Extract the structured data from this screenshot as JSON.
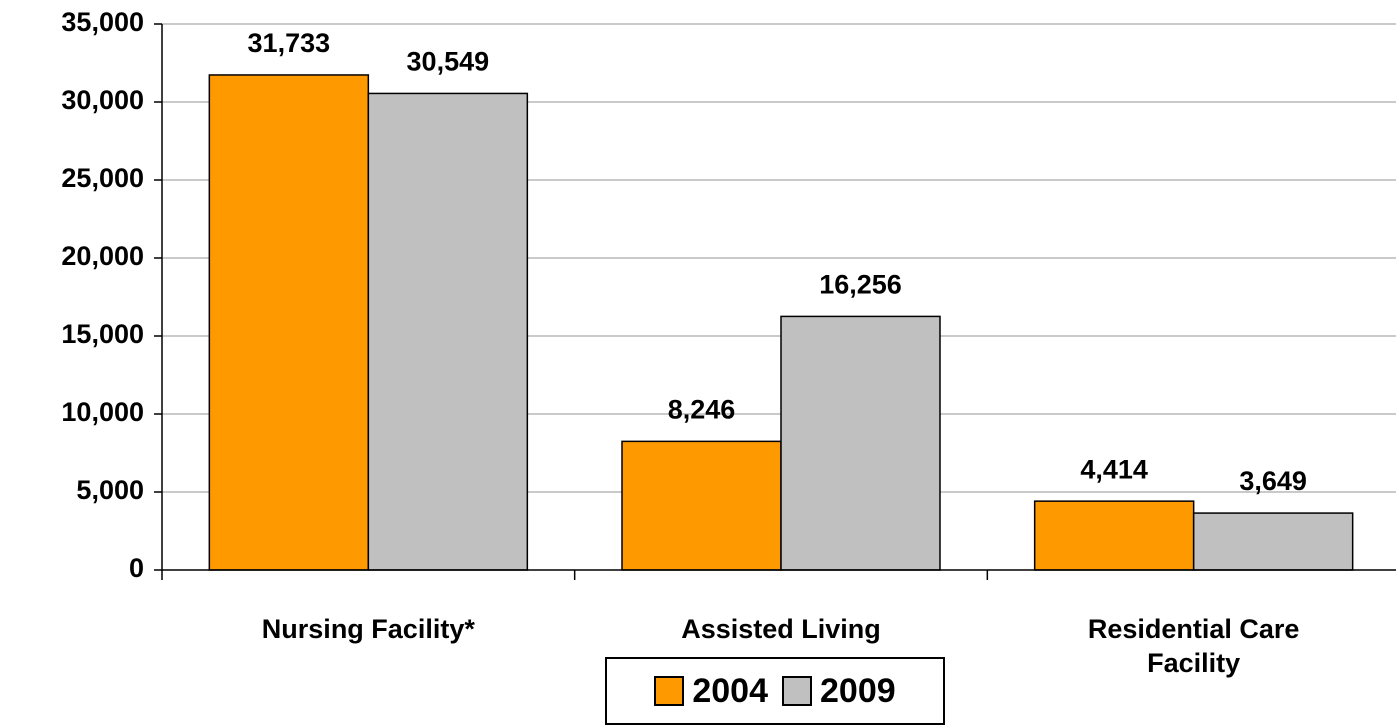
{
  "chart_data": {
    "type": "bar",
    "categories": [
      "Nursing Facility*",
      "Assisted Living",
      "Residential Care Facility"
    ],
    "series": [
      {
        "name": "2004",
        "color": "#FF9900",
        "values": [
          31733,
          8246,
          4414
        ],
        "value_labels": [
          "31,733",
          "8,246",
          "4,414"
        ]
      },
      {
        "name": "2009",
        "color": "#C0C0C0",
        "values": [
          30549,
          16256,
          3649
        ],
        "value_labels": [
          "30,549",
          "16,256",
          "3,649"
        ]
      }
    ],
    "ylim": [
      0,
      35000
    ],
    "yticks": [
      0,
      {
        "value": 5000,
        "label": "5,000"
      },
      {
        "value": 10000,
        "label": "10,000"
      },
      {
        "value": 15000,
        "label": "15,000"
      },
      {
        "value": 20000,
        "label": "20,000"
      },
      {
        "value": 25000,
        "label": "25,000"
      },
      {
        "value": 30000,
        "label": "30,000"
      },
      {
        "value": 35000,
        "label": "35,000"
      }
    ],
    "grid": true,
    "legend": "bottom"
  }
}
